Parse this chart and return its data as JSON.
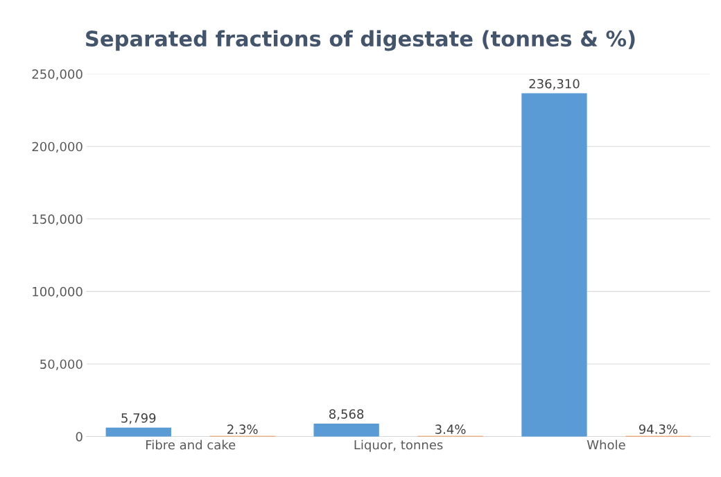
{
  "chart_data": {
    "type": "bar",
    "title": "Separated fractions of digestate (tonnes & %)",
    "categories": [
      "Fibre and cake",
      "Liquor, tonnes",
      "Whole"
    ],
    "series": [
      {
        "color": "#5b9bd5",
        "values": [
          5799,
          8568,
          236310
        ],
        "value_labels": [
          "5,799",
          "8,568",
          "236,310"
        ]
      },
      {
        "color": "#ed7d31",
        "values": [
          2.3,
          3.4,
          94.3
        ],
        "value_labels": [
          "2.3%",
          "3.4%",
          "94.3%"
        ]
      }
    ],
    "ylim": [
      0,
      250000
    ],
    "yticks": [
      {
        "value": 0,
        "label": "0"
      },
      {
        "value": 50000,
        "label": "50,000"
      },
      {
        "value": 100000,
        "label": "100,000"
      },
      {
        "value": 150000,
        "label": "150,000"
      },
      {
        "value": 200000,
        "label": "200,000"
      },
      {
        "value": 250000,
        "label": "250,000"
      }
    ],
    "grid": "y",
    "legend": false
  }
}
